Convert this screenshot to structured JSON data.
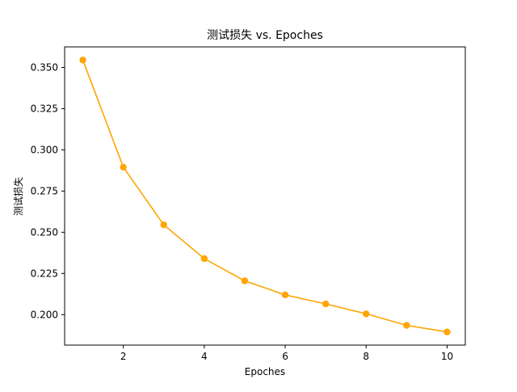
{
  "chart_data": {
    "type": "line",
    "title": "测试损失 vs. Epoches",
    "xlabel": "Epoches",
    "ylabel": "测试损失",
    "x": [
      1,
      2,
      3,
      4,
      5,
      6,
      7,
      8,
      9,
      10
    ],
    "series": [
      {
        "values": [
          0.3545,
          0.2895,
          0.2545,
          0.234,
          0.2205,
          0.212,
          0.2065,
          0.2005,
          0.1935,
          0.1895
        ],
        "color": "#ffa500",
        "marker": "circle"
      }
    ],
    "xlim": [
      0.55,
      10.45
    ],
    "ylim": [
      0.1815,
      0.3625
    ],
    "xticks": [
      2,
      4,
      6,
      8,
      10
    ],
    "yticks": [
      0.2,
      0.225,
      0.25,
      0.275,
      0.3,
      0.325,
      0.35
    ],
    "xtick_labels": [
      "2",
      "4",
      "6",
      "8",
      "10"
    ],
    "ytick_labels": [
      "0.200",
      "0.225",
      "0.250",
      "0.275",
      "0.300",
      "0.325",
      "0.350"
    ],
    "grid": false,
    "legend": "none"
  }
}
